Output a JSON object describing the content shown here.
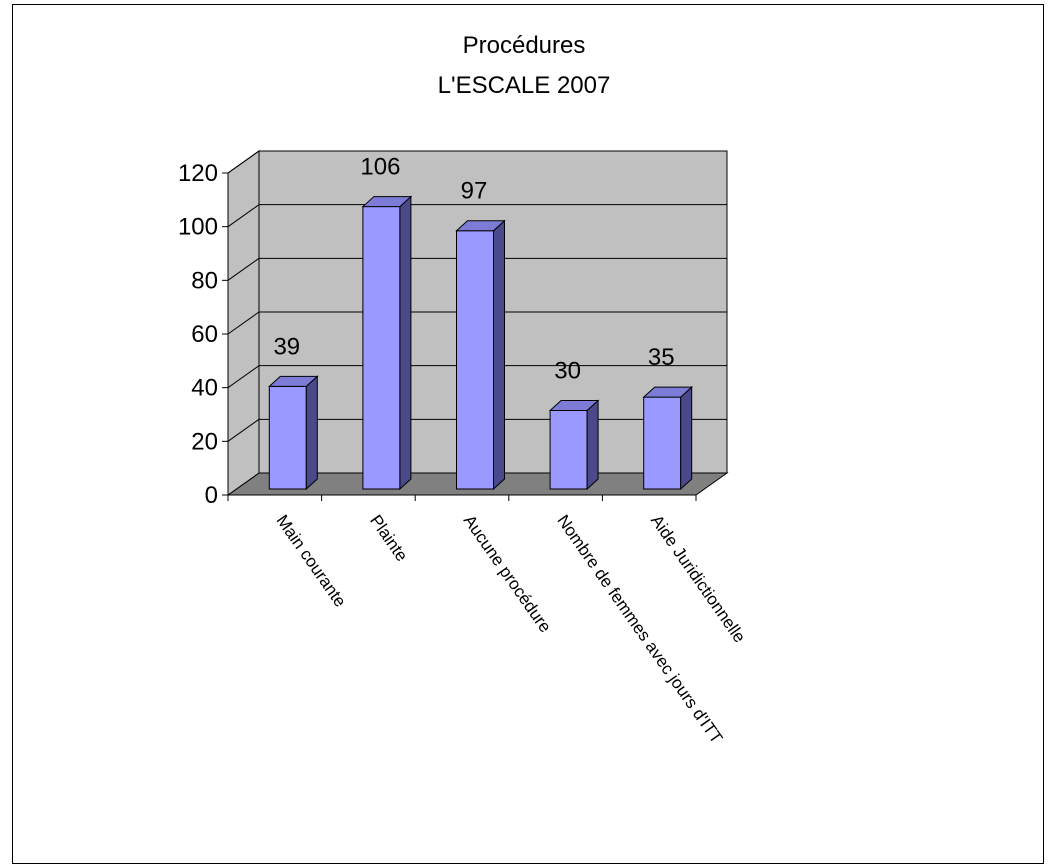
{
  "chart_data": {
    "type": "bar",
    "title_lines": [
      "Procédures",
      "L'ESCALE 2007"
    ],
    "categories": [
      "Main courante",
      "Plainte",
      "Aucune procédure",
      "Nombre de femmes avec jours d'ITT",
      "Aide Juridictionnelle"
    ],
    "values": [
      39,
      106,
      97,
      30,
      35
    ],
    "ylim": [
      0,
      120
    ],
    "yticks": [
      0,
      20,
      40,
      60,
      80,
      100,
      120
    ],
    "grid": true,
    "three_d": true,
    "legend": "none",
    "colors": {
      "bar_front": "#9999ff",
      "bar_side": "#4a4a8a",
      "bar_top": "#7c7cd6",
      "wall": "#c0c0c0",
      "floor": "#808080"
    }
  }
}
